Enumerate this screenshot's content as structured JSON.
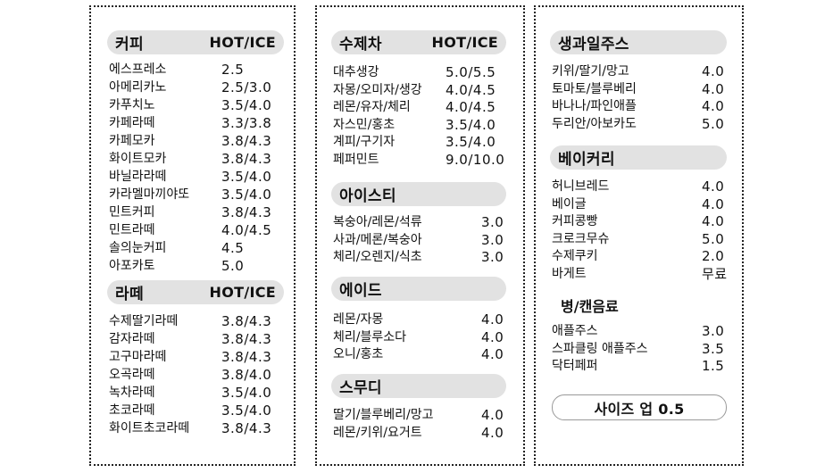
{
  "col1": {
    "coffee": {
      "title": "커피",
      "sub": "HOT/ICE",
      "items": [
        {
          "name": "에스프레소",
          "price": "2.5"
        },
        {
          "name": "아메리카노",
          "price": "2.5/3.0"
        },
        {
          "name": "카푸치노",
          "price": "3.5/4.0"
        },
        {
          "name": "카페라떼",
          "price": "3.3/3.8"
        },
        {
          "name": "카페모카",
          "price": "3.8/4.3"
        },
        {
          "name": "화이트모카",
          "price": "3.8/4.3"
        },
        {
          "name": "바닐라라떼",
          "price": "3.5/4.0"
        },
        {
          "name": "카라멜마끼야또",
          "price": "3.5/4.0"
        },
        {
          "name": "민트커피",
          "price": "3.8/4.3"
        },
        {
          "name": "민트라떼",
          "price": "4.0/4.5"
        },
        {
          "name": "솔의눈커피",
          "price": "4.5"
        },
        {
          "name": "아포카토",
          "price": "5.0"
        }
      ]
    },
    "latte": {
      "title": "라떼",
      "sub": "HOT/ICE",
      "items": [
        {
          "name": "수제딸기라떼",
          "price": "3.8/4.3"
        },
        {
          "name": "감자라떼",
          "price": "3.8/4.3"
        },
        {
          "name": "고구마라떼",
          "price": "3.8/4.3"
        },
        {
          "name": "오곡라떼",
          "price": "3.8/4.0"
        },
        {
          "name": "녹차라떼",
          "price": "3.5/4.0"
        },
        {
          "name": "초코라떼",
          "price": "3.5/4.0"
        },
        {
          "name": "화이트초코라떼",
          "price": "3.8/4.3"
        }
      ]
    }
  },
  "col2": {
    "tea": {
      "title": "수제차",
      "sub": "HOT/ICE",
      "items": [
        {
          "name": "대추생강",
          "price": "5.0/5.5"
        },
        {
          "name": "자몽/오미자/생강",
          "price": "4.0/4.5"
        },
        {
          "name": "레몬/유자/체리",
          "price": "4.0/4.5"
        },
        {
          "name": "자스민/홍초",
          "price": "3.5/4.0"
        },
        {
          "name": "계피/구기자",
          "price": "3.5/4.0"
        },
        {
          "name": "페퍼민트",
          "price": "9.0/10.0"
        }
      ]
    },
    "icedtea": {
      "title": "아이스티",
      "items": [
        {
          "name": "복숭아/레몬/석류",
          "price": "3.0"
        },
        {
          "name": "사과/메론/복숭아",
          "price": "3.0"
        },
        {
          "name": "체리/오렌지/식초",
          "price": "3.0"
        }
      ]
    },
    "ade": {
      "title": "에이드",
      "items": [
        {
          "name": "레몬/자몽",
          "price": "4.0"
        },
        {
          "name": "체리/블루소다",
          "price": "4.0"
        },
        {
          "name": "오니/홍초",
          "price": "4.0"
        }
      ]
    },
    "smoothie": {
      "title": "스무디",
      "items": [
        {
          "name": "딸기/블루베리/망고",
          "price": "4.0"
        },
        {
          "name": "레몬/키위/요거트",
          "price": "4.0"
        }
      ]
    }
  },
  "col3": {
    "juice": {
      "title": "생과일주스",
      "items": [
        {
          "name": "키위/딸기/망고",
          "price": "4.0"
        },
        {
          "name": "토마토/블루베리",
          "price": "4.0"
        },
        {
          "name": "바나나/파인애플",
          "price": "4.0"
        },
        {
          "name": "두리안/아보카도",
          "price": "5.0"
        }
      ]
    },
    "bakery": {
      "title": "베이커리",
      "items": [
        {
          "name": "허니브레드",
          "price": "4.0"
        },
        {
          "name": "베이글",
          "price": "4.0"
        },
        {
          "name": "커피콩빵",
          "price": "4.0"
        },
        {
          "name": "크로크무슈",
          "price": "5.0"
        },
        {
          "name": "수제쿠키",
          "price": "2.0"
        },
        {
          "name": "바게트",
          "price": "무료"
        }
      ]
    },
    "bottle": {
      "title": "병/캔음료",
      "items": [
        {
          "name": "애플주스",
          "price": "3.0"
        },
        {
          "name": "스파클링 애플주스",
          "price": "3.5"
        },
        {
          "name": "닥터페퍼",
          "price": "1.5"
        }
      ]
    },
    "size_up": "사이즈 업 0.5"
  }
}
